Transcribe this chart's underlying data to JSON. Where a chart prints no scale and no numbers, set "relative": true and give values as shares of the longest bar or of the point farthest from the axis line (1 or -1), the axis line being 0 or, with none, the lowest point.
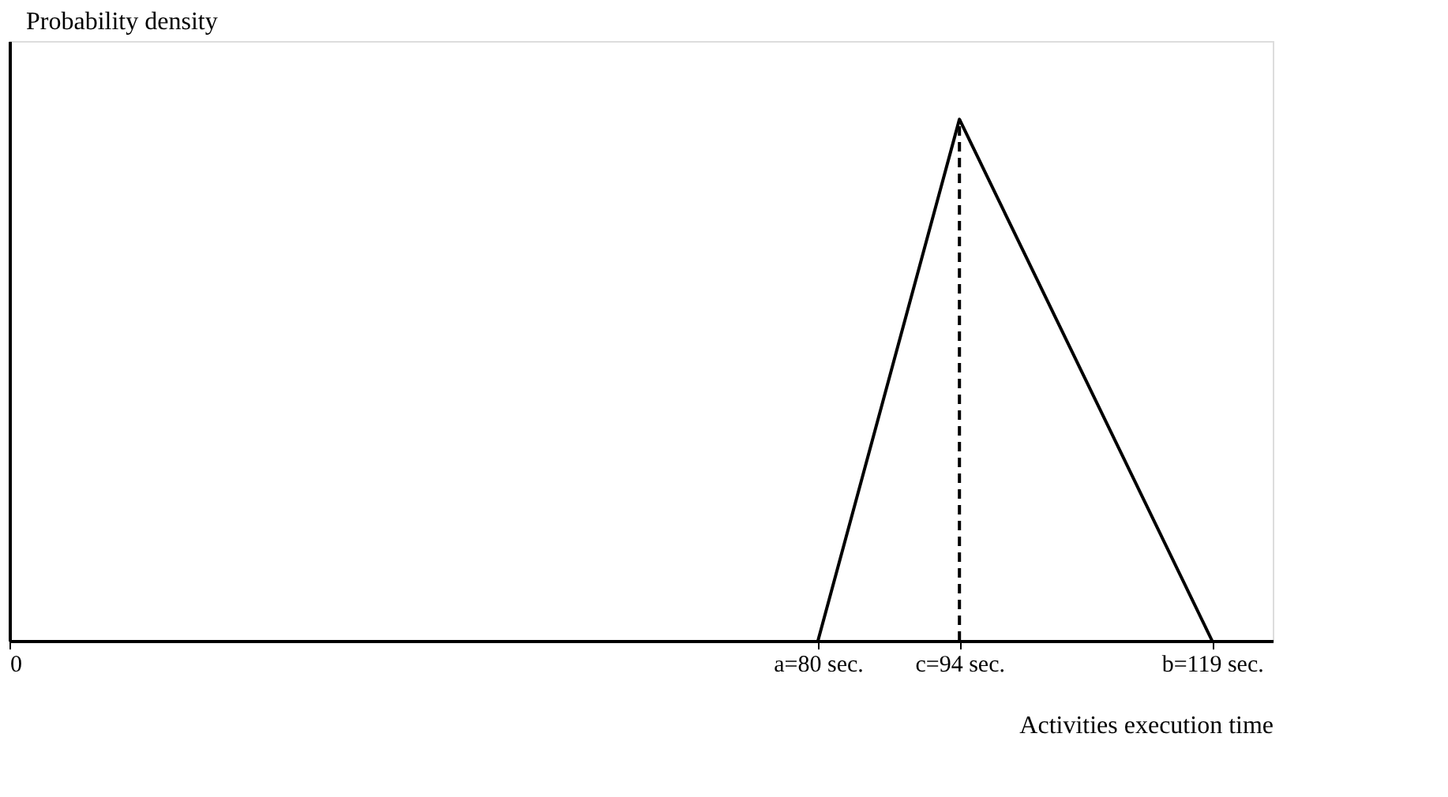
{
  "chart_data": {
    "type": "line",
    "relative": true,
    "xlabel": "Activities execution time",
    "ylabel": "Probability density",
    "x": [
      80,
      94,
      119
    ],
    "series": [
      {
        "color": "#000000",
        "values": [
          0,
          1,
          0
        ]
      }
    ],
    "xlim": [
      0,
      125
    ],
    "xticks": [
      0,
      {
        "value": 80,
        "label": "a=80 sec."
      },
      {
        "value": 94,
        "label": "c=94 sec."
      },
      {
        "value": 119,
        "label": "b=119 sec."
      }
    ],
    "ref_lines": [
      {
        "axis": "x",
        "value": 94,
        "color": "#000000",
        "line_style": "dashed"
      }
    ],
    "grid": false,
    "marker": "none",
    "line_style": "solid"
  }
}
